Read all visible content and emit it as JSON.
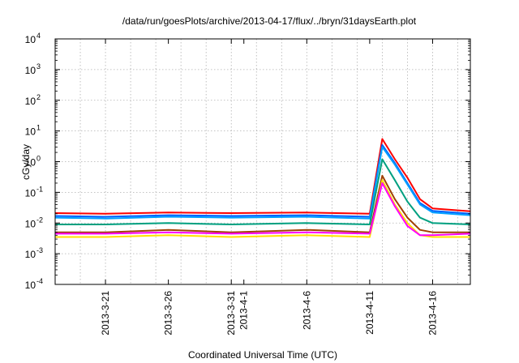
{
  "chart_data": {
    "type": "line",
    "title": "/data/run/goesPlots/archive/2013-04-17/flux/../bryn/31daysEarth.plot",
    "xlabel": "Coordinated Universal Time (UTC)",
    "ylabel": "cGy/day",
    "y_scale": "log",
    "ylim": [
      0.0001,
      10000
    ],
    "y_ticks": [
      {
        "base": "10",
        "exp": "-4",
        "value": 0.0001
      },
      {
        "base": "10",
        "exp": "-3",
        "value": 0.001
      },
      {
        "base": "10",
        "exp": "-2",
        "value": 0.01
      },
      {
        "base": "10",
        "exp": "-1",
        "value": 0.1
      },
      {
        "base": "10",
        "exp": "0",
        "value": 1
      },
      {
        "base": "10",
        "exp": "1",
        "value": 10
      },
      {
        "base": "10",
        "exp": "2",
        "value": 100
      },
      {
        "base": "10",
        "exp": "3",
        "value": 1000
      },
      {
        "base": "10",
        "exp": "4",
        "value": 10000
      }
    ],
    "xlim": [
      "2013-03-17",
      "2013-04-19"
    ],
    "x_ticks": [
      {
        "date": "2013-03-21",
        "label": "2013-3-21"
      },
      {
        "date": "2013-03-26",
        "label": "2013-3-26"
      },
      {
        "date": "2013-03-31",
        "label": "2013-3-31"
      },
      {
        "date": "2013-04-01",
        "label": "2013-4-1"
      },
      {
        "date": "2013-04-06",
        "label": "2013-4-6"
      },
      {
        "date": "2013-04-11",
        "label": "2013-4-11"
      },
      {
        "date": "2013-04-16",
        "label": "2013-4-16"
      }
    ],
    "grid": true,
    "series": [
      {
        "color": "#ff0000",
        "x": [
          "2013-03-17",
          "2013-03-21",
          "2013-03-26",
          "2013-03-31",
          "2013-04-06",
          "2013-04-11",
          "2013-04-12",
          "2013-04-13",
          "2013-04-14",
          "2013-04-15",
          "2013-04-16",
          "2013-04-19"
        ],
        "values": [
          0.021,
          0.02,
          0.022,
          0.021,
          0.022,
          0.02,
          5.5,
          1.2,
          0.3,
          0.06,
          0.03,
          0.024
        ]
      },
      {
        "color": "#0060ff",
        "x": [
          "2013-03-17",
          "2013-03-21",
          "2013-03-26",
          "2013-03-31",
          "2013-04-06",
          "2013-04-11",
          "2013-04-12",
          "2013-04-13",
          "2013-04-14",
          "2013-04-15",
          "2013-04-16",
          "2013-04-19"
        ],
        "values": [
          0.017,
          0.016,
          0.018,
          0.017,
          0.018,
          0.016,
          3.5,
          0.9,
          0.2,
          0.045,
          0.025,
          0.02
        ]
      },
      {
        "color": "#00a0ff",
        "x": [
          "2013-03-17",
          "2013-03-21",
          "2013-03-26",
          "2013-03-31",
          "2013-04-06",
          "2013-04-11",
          "2013-04-12",
          "2013-04-13",
          "2013-04-14",
          "2013-04-15",
          "2013-04-16",
          "2013-04-19"
        ],
        "values": [
          0.015,
          0.014,
          0.016,
          0.015,
          0.016,
          0.014,
          3.0,
          0.8,
          0.18,
          0.04,
          0.022,
          0.018
        ]
      },
      {
        "color": "#00a080",
        "x": [
          "2013-03-17",
          "2013-03-21",
          "2013-03-26",
          "2013-03-31",
          "2013-04-06",
          "2013-04-11",
          "2013-04-12",
          "2013-04-13",
          "2013-04-14",
          "2013-04-15",
          "2013-04-16",
          "2013-04-19"
        ],
        "values": [
          0.009,
          0.009,
          0.01,
          0.009,
          0.01,
          0.009,
          1.2,
          0.25,
          0.05,
          0.015,
          0.01,
          0.009
        ]
      },
      {
        "color": "#a04000",
        "x": [
          "2013-03-17",
          "2013-03-21",
          "2013-03-26",
          "2013-03-31",
          "2013-04-06",
          "2013-04-11",
          "2013-04-12",
          "2013-04-13",
          "2013-04-14",
          "2013-04-15",
          "2013-04-16",
          "2013-04-19"
        ],
        "values": [
          0.005,
          0.005,
          0.006,
          0.005,
          0.006,
          0.005,
          0.35,
          0.06,
          0.015,
          0.006,
          0.005,
          0.005
        ]
      },
      {
        "color": "#ffe000",
        "x": [
          "2013-03-17",
          "2013-03-21",
          "2013-03-26",
          "2013-03-31",
          "2013-04-06",
          "2013-04-11",
          "2013-04-12",
          "2013-04-13",
          "2013-04-14",
          "2013-04-15",
          "2013-04-16",
          "2013-04-19"
        ],
        "values": [
          0.0035,
          0.0035,
          0.004,
          0.0035,
          0.004,
          0.0035,
          0.25,
          0.04,
          0.01,
          0.004,
          0.0035,
          0.0035
        ]
      },
      {
        "color": "#ff00ff",
        "x": [
          "2013-03-17",
          "2013-03-21",
          "2013-03-26",
          "2013-03-31",
          "2013-04-06",
          "2013-04-11",
          "2013-04-12",
          "2013-04-13",
          "2013-04-14",
          "2013-04-15",
          "2013-04-16",
          "2013-04-19"
        ],
        "values": [
          0.0045,
          0.0045,
          0.005,
          0.0045,
          0.005,
          0.0045,
          0.2,
          0.035,
          0.008,
          0.004,
          0.004,
          0.0045
        ]
      }
    ]
  }
}
